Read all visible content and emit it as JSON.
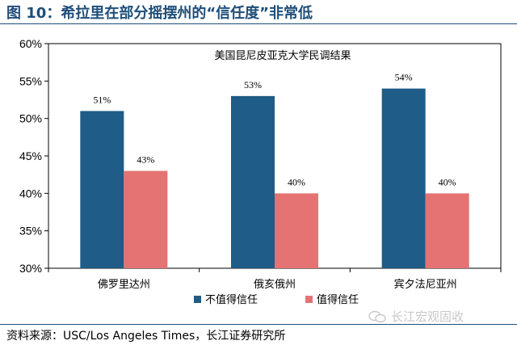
{
  "figure_title": "图 10：希拉里在部分摇摆州的“信任度”非常低",
  "source": "资料来源：USC/Los Angeles Times，长江证券研究所",
  "watermark": "长江宏观固收",
  "colors": {
    "title": "#1f4e79",
    "series1": "#1f5c87",
    "series2": "#e57373"
  },
  "chart_data": {
    "type": "bar",
    "title": "美国昆尼皮亚克大学民调结果",
    "categories": [
      "佛罗里达州",
      "俄亥俄州",
      "宾夕法尼亚州"
    ],
    "series": [
      {
        "name": "不值得信任",
        "values": [
          51,
          53,
          54
        ],
        "labels": [
          "51%",
          "53%",
          "54%"
        ]
      },
      {
        "name": "值得信任",
        "values": [
          43,
          40,
          40
        ],
        "labels": [
          "43%",
          "40%",
          "40%"
        ]
      }
    ],
    "ylim": [
      30,
      60
    ],
    "yticks": [
      30,
      35,
      40,
      45,
      50,
      55,
      60
    ],
    "ytick_labels": [
      "30%",
      "35%",
      "40%",
      "45%",
      "50%",
      "55%",
      "60%"
    ],
    "grid": false,
    "legend": "bottom"
  }
}
